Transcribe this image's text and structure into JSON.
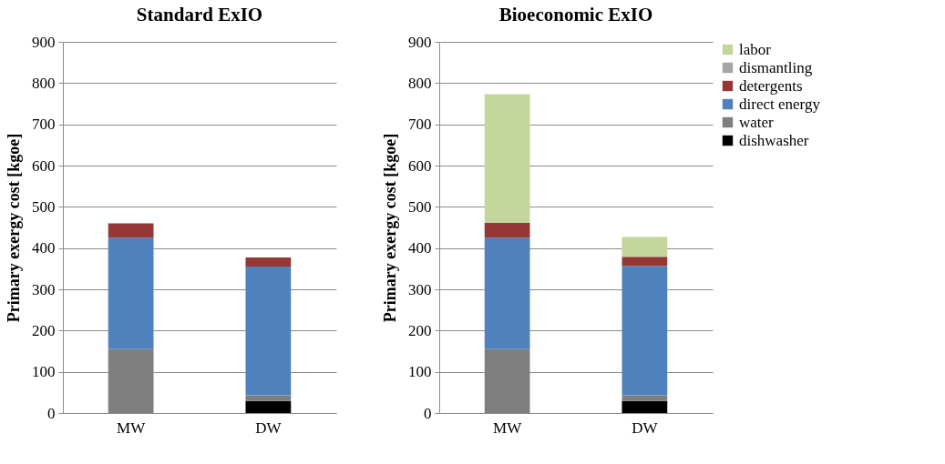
{
  "chart_data": [
    {
      "type": "bar",
      "title": "Standard ExIO",
      "ylabel": "Primary exergy cost [kgoe]",
      "categories": [
        "MW",
        "DW"
      ],
      "stacked": true,
      "ylim": [
        0,
        900
      ],
      "yticks": [
        0,
        100,
        200,
        300,
        400,
        500,
        600,
        700,
        800,
        900
      ],
      "grid": "y",
      "legend": false,
      "series": [
        {
          "color": "#000000",
          "values": [
            0,
            29
          ]
        },
        {
          "color": "#7f7f7f",
          "values": [
            155,
            14
          ]
        },
        {
          "color": "#4f81bd",
          "values": [
            270,
            312
          ]
        },
        {
          "color": "#953735",
          "values": [
            35,
            22
          ]
        }
      ]
    },
    {
      "type": "bar",
      "title": "Bioeconomic ExIO",
      "ylabel": "Primary exergy cost [kgoe]",
      "categories": [
        "MW",
        "DW"
      ],
      "stacked": true,
      "ylim": [
        0,
        900
      ],
      "yticks": [
        0,
        100,
        200,
        300,
        400,
        500,
        600,
        700,
        800,
        900
      ],
      "grid": "y",
      "legend": "right",
      "series": [
        {
          "name": "dishwasher",
          "color": "#000000",
          "values": [
            0,
            29
          ]
        },
        {
          "name": "water",
          "color": "#7f7f7f",
          "values": [
            155,
            14
          ]
        },
        {
          "name": "direct energy",
          "color": "#4f81bd",
          "values": [
            270,
            314
          ]
        },
        {
          "name": "detergents",
          "color": "#953735",
          "values": [
            36,
            22
          ]
        },
        {
          "name": "dismantling",
          "color": "#a6a6a6",
          "values": [
            0,
            0
          ]
        },
        {
          "name": "labor",
          "color": "#c3d69b",
          "values": [
            312,
            48
          ]
        }
      ]
    }
  ]
}
